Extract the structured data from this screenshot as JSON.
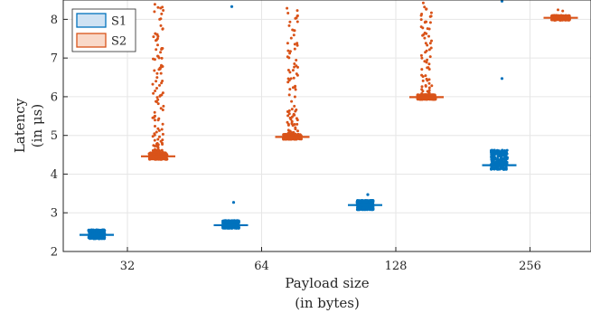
{
  "chart_data": {
    "type": "scatter",
    "subtype": "jittered strip chart with median markers",
    "xlabel_lines": [
      "Payload size",
      "(in bytes)"
    ],
    "ylabel_lines": [
      "Latency",
      "(in μs)"
    ],
    "categories": [
      "32",
      "64",
      "128",
      "256"
    ],
    "ylim": [
      2,
      8.5
    ],
    "yticks": [
      2,
      3,
      4,
      5,
      6,
      7,
      8
    ],
    "grid": true,
    "legend": {
      "position": "top-left"
    },
    "series": [
      {
        "name": "S1",
        "color": "#0072BD",
        "fill": "#cfe2f3",
        "medians": [
          2.43,
          2.68,
          3.2,
          4.23
        ],
        "core_ranges": [
          [
            2.33,
            2.56
          ],
          [
            2.6,
            2.8
          ],
          [
            3.08,
            3.32
          ],
          [
            4.12,
            4.62
          ]
        ],
        "outliers": [
          [],
          [
            3.27
          ],
          [
            3.47
          ],
          [
            6.47,
            8.47
          ]
        ],
        "outliers_above_axis": [
          [],
          [
            8.33
          ],
          [],
          []
        ]
      },
      {
        "name": "S2",
        "color": "#D95319",
        "fill": "#f9d9c9",
        "medians": [
          4.46,
          4.96,
          5.99,
          8.04
        ],
        "core_ranges": [
          [
            4.38,
            4.55
          ],
          [
            4.9,
            5.03
          ],
          [
            5.93,
            6.05
          ],
          [
            7.98,
            8.1
          ]
        ],
        "outlier_band": [
          [
            4.55,
            8.5
          ],
          [
            5.03,
            8.3
          ],
          [
            6.05,
            8.5
          ],
          [
            8.1,
            8.35
          ]
        ],
        "outlier_counts": [
          110,
          90,
          70,
          2
        ]
      }
    ]
  }
}
